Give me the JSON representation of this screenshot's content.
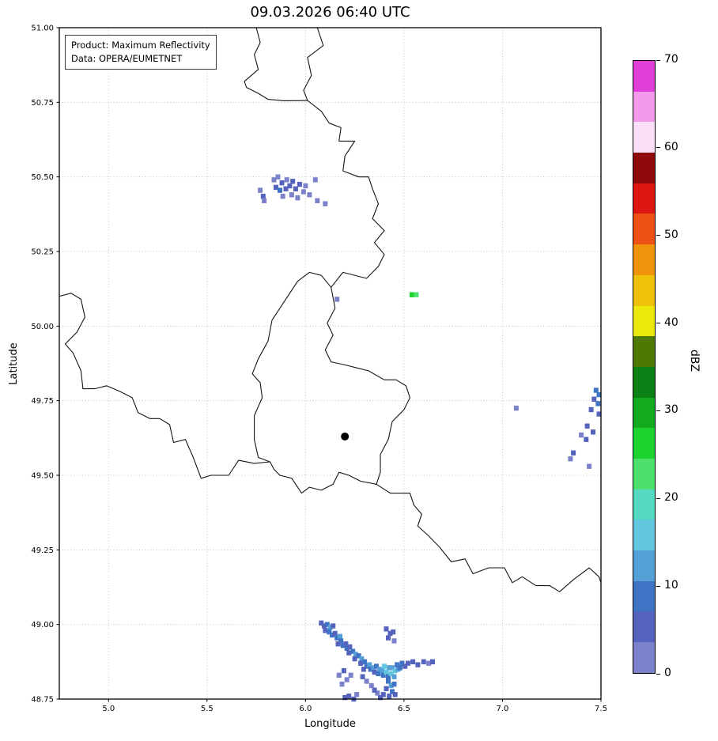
{
  "chart_data": {
    "type": "heatmap",
    "title": "09.03.2026 06:40 UTC",
    "xlabel": "Longitude",
    "ylabel": "Latitude",
    "xlim": [
      4.75,
      7.5
    ],
    "ylim": [
      48.75,
      51.0
    ],
    "grid": true,
    "xticks": [
      5.0,
      5.5,
      6.0,
      6.5,
      7.0,
      7.5
    ],
    "xtick_labels": [
      "5.0",
      "5.5",
      "6.0",
      "6.5",
      "7.0",
      "7.5"
    ],
    "yticks": [
      48.75,
      49.0,
      49.25,
      49.5,
      49.75,
      50.0,
      50.25,
      50.5,
      50.75,
      51.0
    ],
    "ytick_labels": [
      "48.75",
      "49.00",
      "49.25",
      "49.50",
      "49.75",
      "50.00",
      "50.25",
      "50.50",
      "50.75",
      "51.00"
    ],
    "annotation_box": {
      "line1": "Product: Maximum Reflectivity",
      "line2": "Data: OPERA/EUMETNET"
    },
    "marker": {
      "lon": 6.2,
      "lat": 49.63,
      "color": "#000000"
    },
    "cell_size_deg": [
      0.024,
      0.017
    ],
    "colorbar": {
      "label": "dBZ",
      "min": 0,
      "max": 70,
      "ticks": [
        0,
        10,
        20,
        30,
        40,
        50,
        60,
        70
      ],
      "segments": [
        {
          "to": 3.5,
          "color": "#7b82c9"
        },
        {
          "to": 7,
          "color": "#5563bd"
        },
        {
          "to": 10.5,
          "color": "#3f74c4"
        },
        {
          "to": 14,
          "color": "#55a0d6"
        },
        {
          "to": 17.5,
          "color": "#62c6de"
        },
        {
          "to": 21,
          "color": "#55d9c0"
        },
        {
          "to": 24.5,
          "color": "#4ee06e"
        },
        {
          "to": 28,
          "color": "#1dd32f"
        },
        {
          "to": 31.5,
          "color": "#12ab1f"
        },
        {
          "to": 35,
          "color": "#0b8014"
        },
        {
          "to": 38.5,
          "color": "#4e7a04"
        },
        {
          "to": 42,
          "color": "#ece80b"
        },
        {
          "to": 45.5,
          "color": "#eec20b"
        },
        {
          "to": 49,
          "color": "#f0940b"
        },
        {
          "to": 52.5,
          "color": "#ee5114"
        },
        {
          "to": 56,
          "color": "#dc1610"
        },
        {
          "to": 59.5,
          "color": "#8f0b0b"
        },
        {
          "to": 63,
          "color": "#fbdef8"
        },
        {
          "to": 66.5,
          "color": "#f29ae9"
        },
        {
          "to": 70,
          "color": "#e03fd8"
        }
      ]
    },
    "borders": [
      [
        [
          6.06,
          51.0
        ],
        [
          6.09,
          50.94
        ],
        [
          6.01,
          50.9
        ],
        [
          6.03,
          50.84
        ],
        [
          5.99,
          50.79
        ],
        [
          6.01,
          50.756
        ]
      ],
      [
        [
          6.01,
          50.756
        ],
        [
          5.89,
          50.755
        ],
        [
          5.81,
          50.76
        ],
        [
          5.76,
          50.78
        ],
        [
          5.7,
          50.8
        ],
        [
          5.69,
          50.82
        ],
        [
          5.76,
          50.86
        ],
        [
          5.74,
          50.91
        ],
        [
          5.77,
          50.95
        ],
        [
          5.75,
          51.0
        ]
      ],
      [
        [
          6.01,
          50.756
        ],
        [
          6.08,
          50.72
        ],
        [
          6.12,
          50.68
        ],
        [
          6.18,
          50.665
        ],
        [
          6.17,
          50.62
        ],
        [
          6.25,
          50.62
        ],
        [
          6.2,
          50.57
        ],
        [
          6.19,
          50.52
        ],
        [
          6.27,
          50.5
        ],
        [
          6.32,
          50.5
        ],
        [
          6.34,
          50.46
        ],
        [
          6.37,
          50.41
        ],
        [
          6.34,
          50.36
        ],
        [
          6.4,
          50.32
        ],
        [
          6.35,
          50.28
        ],
        [
          6.4,
          50.24
        ],
        [
          6.37,
          50.2
        ],
        [
          6.31,
          50.16
        ],
        [
          6.19,
          50.18
        ],
        [
          6.13,
          50.13
        ]
      ],
      [
        [
          6.13,
          50.13
        ],
        [
          6.15,
          50.06
        ],
        [
          6.11,
          50.01
        ],
        [
          6.14,
          49.97
        ],
        [
          6.1,
          49.92
        ],
        [
          6.13,
          49.88
        ],
        [
          6.2,
          49.87
        ],
        [
          6.26,
          49.86
        ],
        [
          6.32,
          49.85
        ],
        [
          6.4,
          49.82
        ],
        [
          6.46,
          49.82
        ],
        [
          6.51,
          49.8
        ],
        [
          6.53,
          49.76
        ],
        [
          6.5,
          49.72
        ],
        [
          6.44,
          49.68
        ],
        [
          6.42,
          49.62
        ],
        [
          6.38,
          49.57
        ],
        [
          6.38,
          49.51
        ],
        [
          6.36,
          49.47
        ]
      ],
      [
        [
          6.36,
          49.47
        ],
        [
          6.28,
          49.48
        ],
        [
          6.22,
          49.5
        ],
        [
          6.17,
          49.51
        ],
        [
          6.14,
          49.47
        ],
        [
          6.08,
          49.45
        ],
        [
          6.02,
          49.46
        ],
        [
          5.98,
          49.44
        ],
        [
          5.93,
          49.49
        ],
        [
          5.87,
          49.5
        ],
        [
          5.84,
          49.52
        ],
        [
          5.82,
          49.545
        ]
      ],
      [
        [
          5.82,
          49.545
        ],
        [
          5.76,
          49.56
        ],
        [
          5.74,
          49.62
        ],
        [
          5.74,
          49.7
        ],
        [
          5.78,
          49.76
        ],
        [
          5.77,
          49.81
        ],
        [
          5.73,
          49.84
        ],
        [
          5.76,
          49.89
        ],
        [
          5.81,
          49.95
        ],
        [
          5.83,
          50.02
        ],
        [
          5.89,
          50.08
        ],
        [
          5.96,
          50.15
        ],
        [
          6.02,
          50.18
        ],
        [
          6.08,
          50.17
        ],
        [
          6.13,
          50.13
        ]
      ],
      [
        [
          5.82,
          49.545
        ],
        [
          5.74,
          49.54
        ],
        [
          5.66,
          49.55
        ],
        [
          5.61,
          49.5
        ],
        [
          5.52,
          49.5
        ],
        [
          5.47,
          49.49
        ],
        [
          5.43,
          49.56
        ],
        [
          5.39,
          49.62
        ],
        [
          5.33,
          49.61
        ],
        [
          5.31,
          49.67
        ],
        [
          5.26,
          49.69
        ],
        [
          5.21,
          49.69
        ],
        [
          5.15,
          49.71
        ],
        [
          5.12,
          49.76
        ],
        [
          5.06,
          49.78
        ],
        [
          4.99,
          49.8
        ],
        [
          4.93,
          49.79
        ],
        [
          4.87,
          49.79
        ],
        [
          4.86,
          49.85
        ],
        [
          4.82,
          49.91
        ],
        [
          4.78,
          49.94
        ],
        [
          4.84,
          49.98
        ],
        [
          4.88,
          50.03
        ],
        [
          4.86,
          50.09
        ],
        [
          4.81,
          50.11
        ],
        [
          4.75,
          50.1
        ]
      ],
      [
        [
          6.36,
          49.47
        ],
        [
          6.43,
          49.44
        ],
        [
          6.53,
          49.44
        ],
        [
          6.55,
          49.4
        ],
        [
          6.59,
          49.37
        ],
        [
          6.57,
          49.33
        ],
        [
          6.62,
          49.3
        ],
        [
          6.68,
          49.26
        ],
        [
          6.74,
          49.21
        ],
        [
          6.81,
          49.22
        ],
        [
          6.85,
          49.17
        ],
        [
          6.93,
          49.19
        ],
        [
          7.01,
          49.19
        ],
        [
          7.05,
          49.14
        ],
        [
          7.1,
          49.16
        ],
        [
          7.17,
          49.13
        ],
        [
          7.24,
          49.13
        ],
        [
          7.29,
          49.11
        ],
        [
          7.36,
          49.15
        ],
        [
          7.44,
          49.19
        ],
        [
          7.49,
          49.16
        ],
        [
          7.5,
          49.14
        ]
      ]
    ],
    "cells": [
      [
        5.77,
        50.455,
        2
      ],
      [
        5.785,
        50.435,
        4
      ],
      [
        5.79,
        50.42,
        1
      ],
      [
        5.84,
        50.49,
        3
      ],
      [
        5.85,
        50.465,
        6
      ],
      [
        5.86,
        50.5,
        2
      ],
      [
        5.87,
        50.455,
        8
      ],
      [
        5.88,
        50.48,
        4
      ],
      [
        5.885,
        50.435,
        3
      ],
      [
        5.9,
        50.46,
        6
      ],
      [
        5.905,
        50.49,
        2
      ],
      [
        5.92,
        50.47,
        5
      ],
      [
        5.93,
        50.44,
        3
      ],
      [
        5.935,
        50.485,
        7
      ],
      [
        5.95,
        50.46,
        4
      ],
      [
        5.96,
        50.43,
        2
      ],
      [
        5.97,
        50.475,
        5
      ],
      [
        5.99,
        50.45,
        3
      ],
      [
        6.0,
        50.47,
        2
      ],
      [
        6.02,
        50.44,
        1
      ],
      [
        6.05,
        50.49,
        3
      ],
      [
        6.06,
        50.42,
        2
      ],
      [
        6.1,
        50.41,
        3
      ],
      [
        6.16,
        50.09,
        3
      ],
      [
        6.54,
        50.105,
        26
      ],
      [
        6.562,
        50.105,
        23
      ],
      [
        7.07,
        49.725,
        2
      ],
      [
        7.475,
        49.785,
        8
      ],
      [
        7.49,
        49.77,
        10
      ],
      [
        7.465,
        49.755,
        6
      ],
      [
        7.485,
        49.74,
        9
      ],
      [
        7.45,
        49.72,
        5
      ],
      [
        7.49,
        49.705,
        7
      ],
      [
        7.43,
        49.665,
        4
      ],
      [
        7.46,
        49.645,
        6
      ],
      [
        7.4,
        49.635,
        3
      ],
      [
        7.425,
        49.62,
        5
      ],
      [
        7.36,
        49.575,
        4
      ],
      [
        7.345,
        49.555,
        2
      ],
      [
        7.44,
        49.53,
        3
      ],
      [
        6.08,
        49.005,
        4
      ],
      [
        6.095,
        48.995,
        7
      ],
      [
        6.11,
        49.0,
        9
      ],
      [
        6.125,
        48.99,
        11
      ],
      [
        6.14,
        48.995,
        6
      ],
      [
        6.1,
        48.98,
        5
      ],
      [
        6.12,
        48.975,
        8
      ],
      [
        6.135,
        48.965,
        10
      ],
      [
        6.15,
        48.97,
        7
      ],
      [
        6.16,
        48.955,
        9
      ],
      [
        6.175,
        48.96,
        12
      ],
      [
        6.18,
        48.945,
        8
      ],
      [
        6.165,
        48.935,
        5
      ],
      [
        6.19,
        48.93,
        10
      ],
      [
        6.205,
        48.935,
        7
      ],
      [
        6.21,
        48.92,
        9
      ],
      [
        6.225,
        48.925,
        6
      ],
      [
        6.22,
        48.905,
        4
      ],
      [
        6.24,
        48.91,
        8
      ],
      [
        6.255,
        48.9,
        11
      ],
      [
        6.25,
        48.885,
        7
      ],
      [
        6.27,
        48.895,
        9
      ],
      [
        6.285,
        48.885,
        12
      ],
      [
        6.28,
        48.87,
        6
      ],
      [
        6.3,
        48.875,
        10
      ],
      [
        6.31,
        48.86,
        8
      ],
      [
        6.295,
        48.85,
        5
      ],
      [
        6.325,
        48.865,
        11
      ],
      [
        6.33,
        48.85,
        9
      ],
      [
        6.345,
        48.855,
        13
      ],
      [
        6.35,
        48.84,
        7
      ],
      [
        6.36,
        48.86,
        10
      ],
      [
        6.375,
        48.85,
        14
      ],
      [
        6.37,
        48.835,
        8
      ],
      [
        6.39,
        48.845,
        12
      ],
      [
        6.4,
        48.86,
        15
      ],
      [
        6.395,
        48.83,
        9
      ],
      [
        6.41,
        48.84,
        16
      ],
      [
        6.425,
        48.855,
        12
      ],
      [
        6.42,
        48.825,
        10
      ],
      [
        6.435,
        48.835,
        17
      ],
      [
        6.44,
        48.855,
        13
      ],
      [
        6.455,
        48.845,
        15
      ],
      [
        6.45,
        48.825,
        11
      ],
      [
        6.47,
        48.85,
        13
      ],
      [
        6.465,
        48.865,
        9
      ],
      [
        6.48,
        48.855,
        10
      ],
      [
        6.49,
        48.87,
        8
      ],
      [
        6.505,
        48.86,
        6
      ],
      [
        6.52,
        48.87,
        7
      ],
      [
        6.545,
        48.875,
        5
      ],
      [
        6.57,
        48.865,
        4
      ],
      [
        6.6,
        48.875,
        6
      ],
      [
        6.625,
        48.87,
        3
      ],
      [
        6.645,
        48.875,
        4
      ],
      [
        6.42,
        48.81,
        9
      ],
      [
        6.435,
        48.795,
        12
      ],
      [
        6.45,
        48.8,
        8
      ],
      [
        6.41,
        48.785,
        6
      ],
      [
        6.44,
        48.775,
        10
      ],
      [
        6.425,
        48.76,
        7
      ],
      [
        6.455,
        48.765,
        5
      ],
      [
        6.395,
        48.765,
        4
      ],
      [
        6.38,
        48.755,
        6
      ],
      [
        6.365,
        48.77,
        3
      ],
      [
        6.35,
        48.78,
        5
      ],
      [
        6.335,
        48.795,
        2
      ],
      [
        6.31,
        48.81,
        3
      ],
      [
        6.29,
        48.825,
        4
      ],
      [
        6.23,
        48.83,
        2
      ],
      [
        6.21,
        48.815,
        3
      ],
      [
        6.185,
        48.8,
        2
      ],
      [
        6.17,
        48.83,
        3
      ],
      [
        6.195,
        48.845,
        4
      ],
      [
        6.2,
        48.755,
        4
      ],
      [
        6.22,
        48.76,
        6
      ],
      [
        6.245,
        48.75,
        5
      ],
      [
        6.26,
        48.765,
        3
      ],
      [
        6.41,
        48.985,
        5
      ],
      [
        6.43,
        48.97,
        7
      ],
      [
        6.445,
        48.975,
        4
      ],
      [
        6.42,
        48.955,
        6
      ],
      [
        6.45,
        48.945,
        3
      ]
    ]
  }
}
